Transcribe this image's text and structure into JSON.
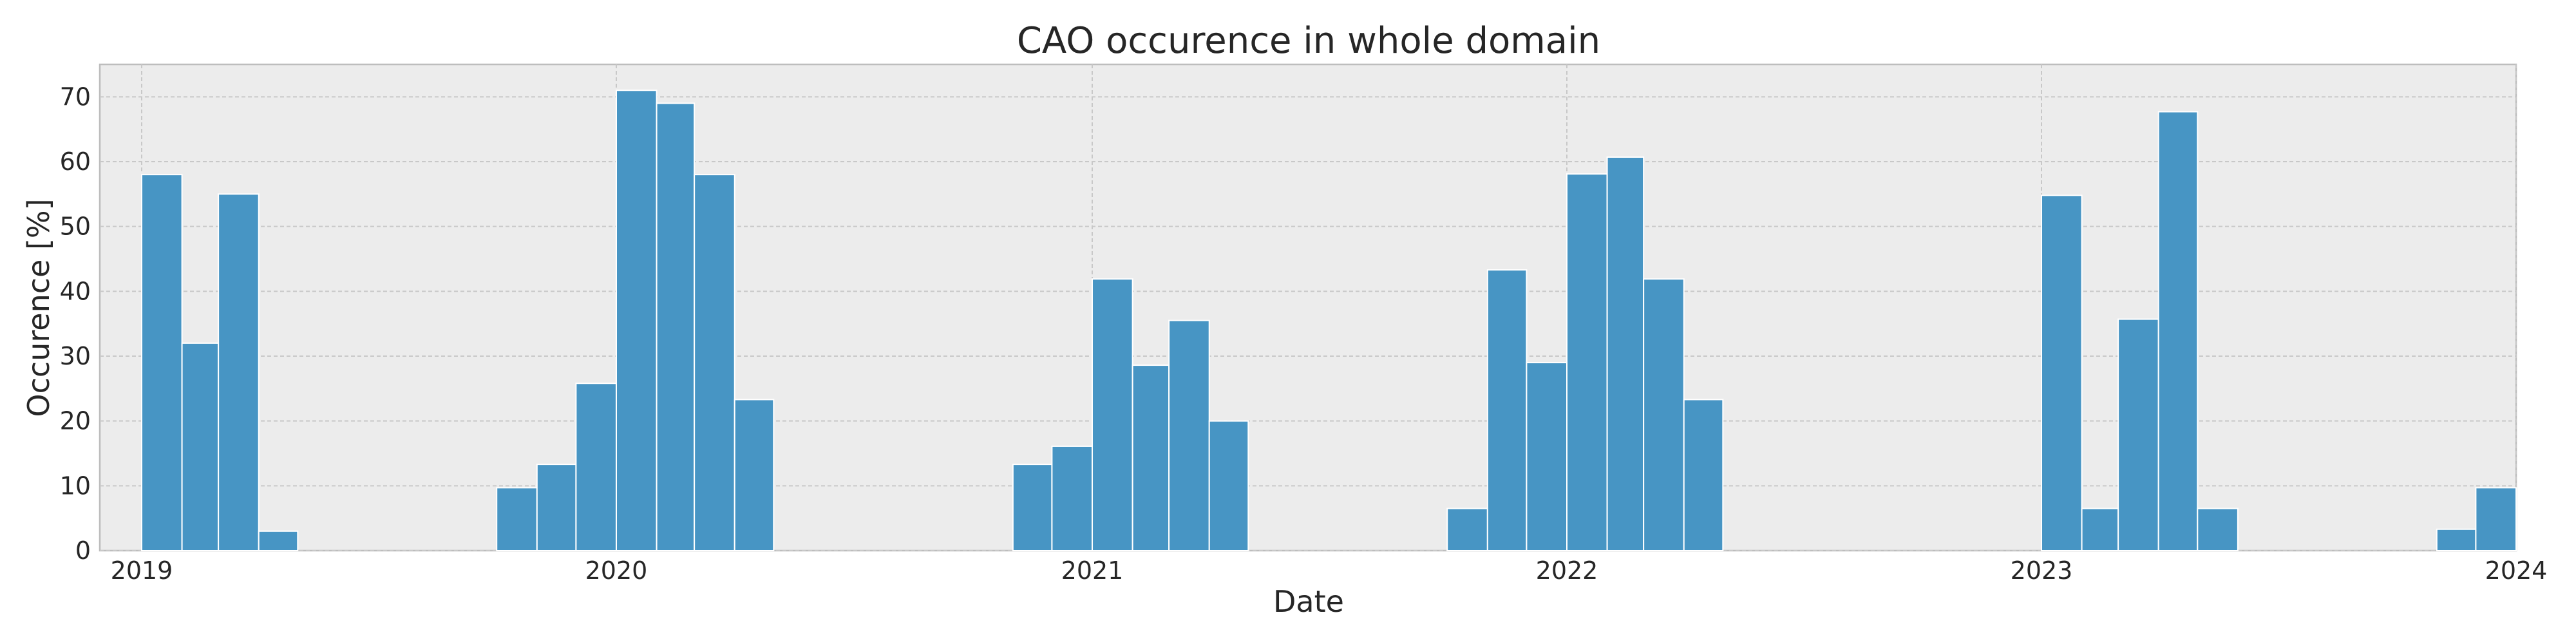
{
  "chart_data": {
    "type": "bar",
    "title": "CAO occurence in whole domain",
    "xlabel": "Date",
    "ylabel": "Occurence [%]",
    "ylim": [
      0,
      75
    ],
    "xlim": [
      "2019-01-01",
      "2024-01-01"
    ],
    "grid": true,
    "colors": {
      "bar": "#4795c4",
      "background": "#ececec"
    },
    "x_ticks": [
      {
        "label": "2019",
        "date": "2019-01-01"
      },
      {
        "label": "2020",
        "date": "2020-01-01"
      },
      {
        "label": "2021",
        "date": "2021-01-01"
      },
      {
        "label": "2022",
        "date": "2022-01-01"
      },
      {
        "label": "2023",
        "date": "2023-01-01"
      },
      {
        "label": "2024",
        "date": "2024-01-01"
      }
    ],
    "y_ticks": [
      0,
      10,
      20,
      30,
      40,
      50,
      60,
      70
    ],
    "series": [
      {
        "x": [
          "2019-01",
          "2019-02",
          "2019-03",
          "2019-04",
          "2019-05",
          "2019-06",
          "2019-07",
          "2019-08",
          "2019-09",
          "2019-10",
          "2019-11",
          "2019-12",
          "2020-01",
          "2020-02",
          "2020-03",
          "2020-04",
          "2020-05",
          "2020-06",
          "2020-07",
          "2020-08",
          "2020-09",
          "2020-10",
          "2020-11",
          "2020-12",
          "2021-01",
          "2021-02",
          "2021-03",
          "2021-04",
          "2021-05",
          "2021-06",
          "2021-07",
          "2021-08",
          "2021-09",
          "2021-10",
          "2021-11",
          "2021-12",
          "2022-01",
          "2022-02",
          "2022-03",
          "2022-04",
          "2022-05",
          "2022-06",
          "2022-07",
          "2022-08",
          "2022-09",
          "2022-10",
          "2022-11",
          "2022-12",
          "2023-01",
          "2023-02",
          "2023-03",
          "2023-04",
          "2023-05",
          "2023-06",
          "2023-07",
          "2023-08",
          "2023-09",
          "2023-10",
          "2023-11",
          "2023-12"
        ],
        "values": [
          58,
          32,
          55,
          3,
          0,
          0,
          0,
          0,
          0,
          9.7,
          13.3,
          25.8,
          71,
          69,
          58,
          23.3,
          0,
          0,
          0,
          0,
          0,
          0,
          13.3,
          16.1,
          41.9,
          28.6,
          35.5,
          20,
          0,
          0,
          0,
          0,
          0,
          6.5,
          43.3,
          29,
          58.1,
          60.7,
          41.9,
          23.3,
          0,
          0,
          0,
          0,
          0,
          0,
          0,
          0,
          54.8,
          6.5,
          35.7,
          67.7,
          6.5,
          0,
          0,
          0,
          0,
          0,
          3.3,
          9.7
        ]
      }
    ]
  }
}
